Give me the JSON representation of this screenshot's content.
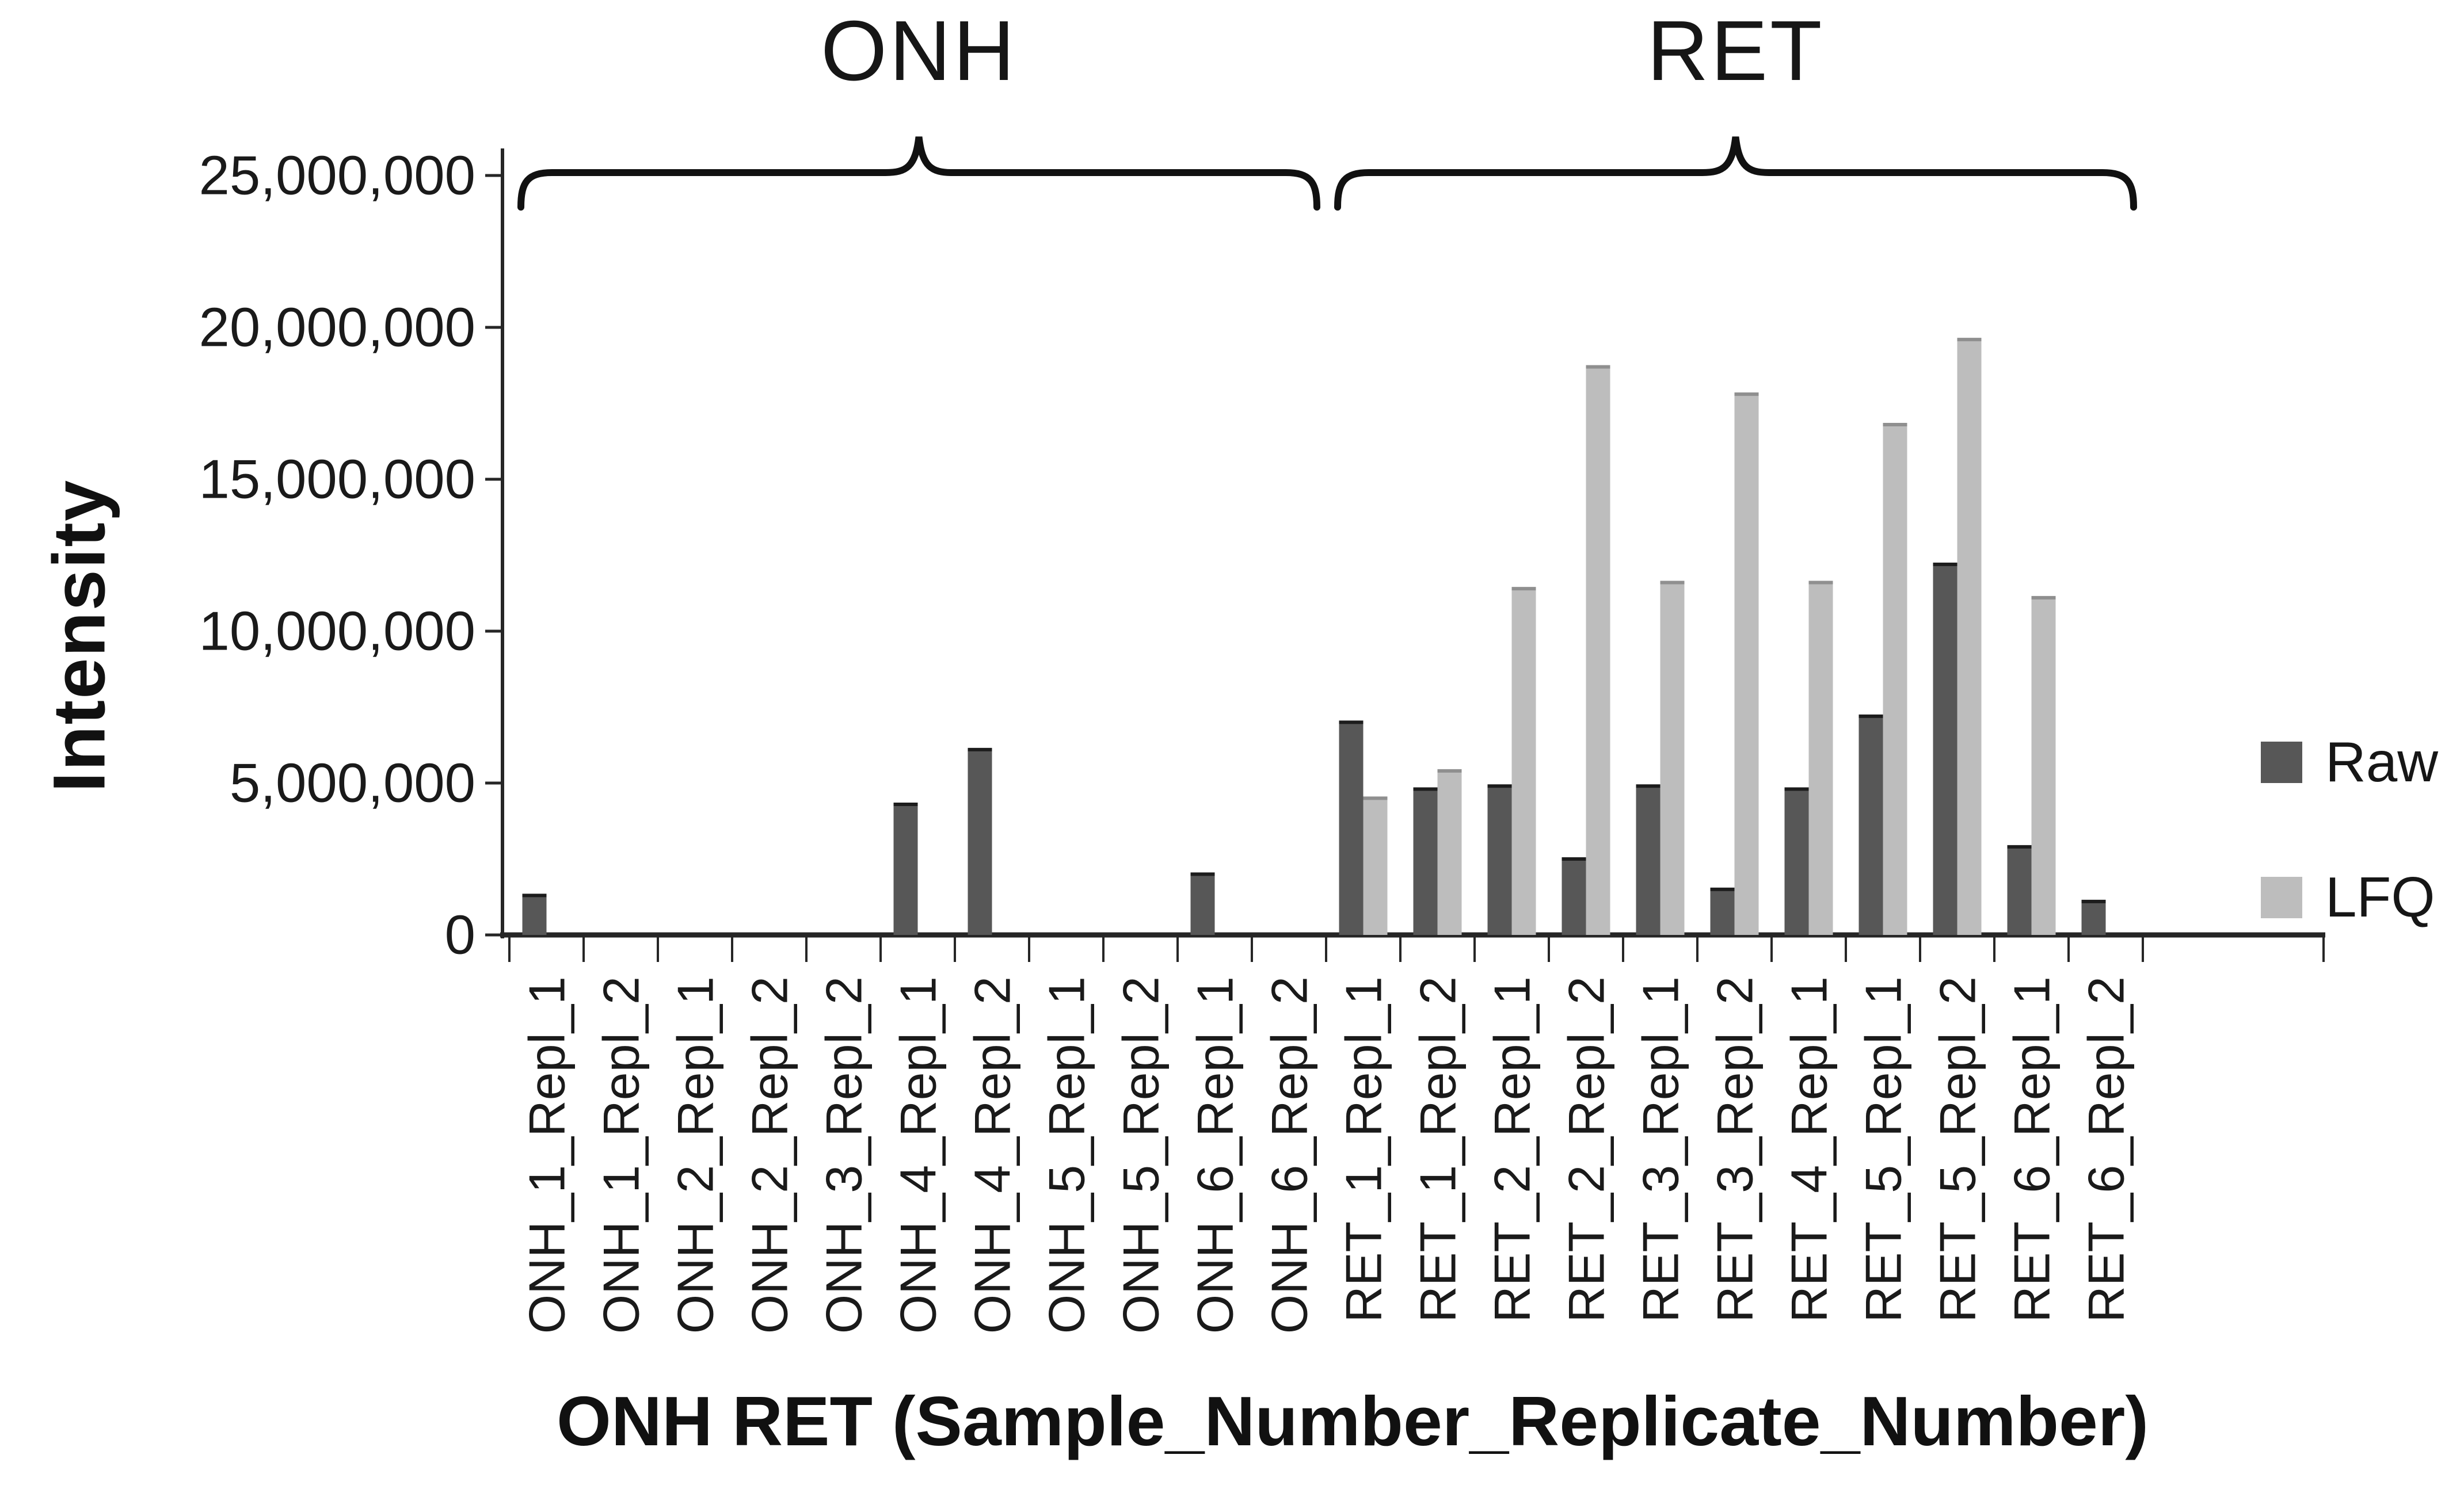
{
  "chart_data": {
    "type": "bar",
    "title": "",
    "xlabel": "ONH RET (Sample_Number_Replicate_Number)",
    "ylabel": "Intensity",
    "ylim": [
      0,
      25000000
    ],
    "ytick_step": 5000000,
    "ytick_values": [
      0,
      5000000,
      10000000,
      15000000,
      20000000,
      25000000
    ],
    "ytick_labels": [
      "0",
      "5,000,000",
      "10,000,000",
      "15,000,000",
      "20,000,000",
      "25,000,000"
    ],
    "grid": false,
    "legend_position": "right",
    "groups": [
      {
        "label": "ONH",
        "from": 0,
        "to": 10
      },
      {
        "label": "RET",
        "from": 11,
        "to": 21
      }
    ],
    "categories": [
      "ONH_1_Repl_1",
      "ONH_1_Repl_2",
      "ONH_2_Repl_1",
      "ONH_2_Repl_2",
      "ONH_3_Repl_2",
      "ONH_4_Repl_1",
      "ONH_4_Repl_2",
      "ONH_5_Repl_1",
      "ONH_5_Repl_2",
      "ONH_6_Repl_1",
      "ONH_6_Repl_2",
      "RET_1_Repl_1",
      "RET_1_Repl_2",
      "RET_2_Repl_1",
      "RET_2_Repl_2",
      "RET_3_Repl_1",
      "RET_3_Repl_2",
      "RET_4_Repl_1",
      "RET_5_Repl_1",
      "RET_5_Repl_2",
      "RET_6_Repl_1",
      "RET_6_Repl_2"
    ],
    "series": [
      {
        "name": "Raw",
        "color": "#575757",
        "cap_color": "#1c1c1c",
        "values": [
          1300000,
          0,
          0,
          0,
          0,
          4300000,
          6100000,
          0,
          0,
          2000000,
          0,
          7000000,
          4800000,
          4900000,
          2500000,
          4900000,
          1500000,
          4800000,
          7200000,
          12200000,
          2900000,
          1100000
        ]
      },
      {
        "name": "LFQ",
        "color": "#bdbdbd",
        "cap_color": "#8f8f8f",
        "values": [
          0,
          0,
          0,
          0,
          0,
          0,
          0,
          0,
          0,
          0,
          0,
          4500000,
          5400000,
          11400000,
          18700000,
          11600000,
          17800000,
          11600000,
          16800000,
          19600000,
          11100000,
          0
        ]
      }
    ],
    "colors": {
      "axis": "#262626",
      "text": "#1a1a1a",
      "brace": "#111111"
    }
  }
}
